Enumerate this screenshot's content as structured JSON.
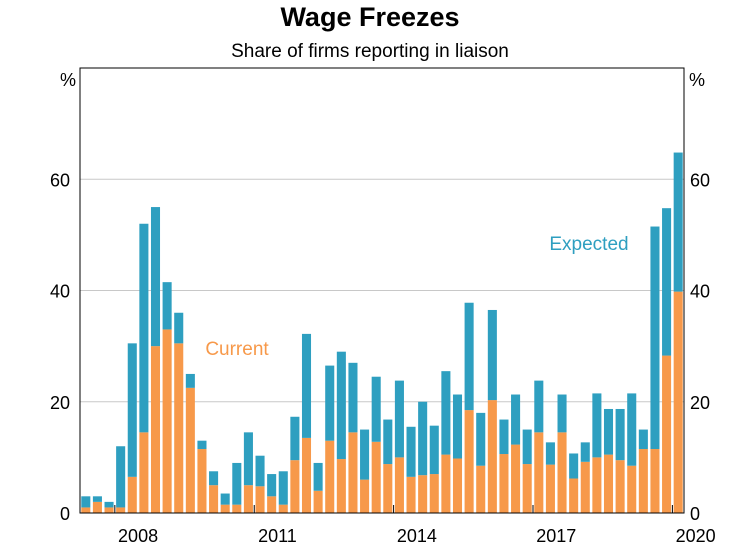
{
  "chart_data": {
    "type": "bar",
    "stacked": true,
    "title": "Wage Freezes",
    "subtitle": "Share of firms reporting in liaison",
    "y_unit_left": "%",
    "y_unit_right": "%",
    "ylim": [
      0,
      80
    ],
    "yticks": [
      "0",
      "20",
      "40",
      "60"
    ],
    "xticks": [
      "2008",
      "2011",
      "2014",
      "2017",
      "2020"
    ],
    "grid": true,
    "x_start": "2007 Q2",
    "frequency": "quarterly",
    "series": [
      {
        "name": "Current",
        "color": "#F7994A",
        "label_text_color": "#F7994A",
        "values": [
          1,
          2,
          1,
          1,
          6.5,
          14.5,
          30,
          33,
          30.5,
          22.5,
          11.5,
          5,
          1.5,
          1.5,
          5,
          4.8,
          3,
          1.5,
          9.5,
          13.5,
          4,
          13,
          9.7,
          14.5,
          6,
          12.8,
          8.8,
          10,
          6.5,
          6.8,
          7,
          10.5,
          9.8,
          18.5,
          8.5,
          20.3,
          10.6,
          12.3,
          8.8,
          14.5,
          8.7,
          14.5,
          6.2,
          9.2,
          10,
          10.5,
          9.5,
          8.5,
          11.5,
          11.5,
          28.3,
          39.8
        ]
      },
      {
        "name": "Expected",
        "color": "#2E9FC0",
        "label_text_color": "#2E9FC0",
        "values": [
          2,
          1,
          1,
          11,
          24,
          37.5,
          25,
          8.5,
          5.5,
          2.5,
          1.5,
          2.5,
          2,
          7.5,
          9.5,
          5.5,
          4,
          6,
          7.8,
          18.7,
          5,
          13.5,
          19.3,
          12.5,
          9,
          11.7,
          8,
          13.8,
          9,
          13.2,
          8.7,
          15,
          11.5,
          19.3,
          9.5,
          16.2,
          6.2,
          9,
          6.2,
          9.3,
          4,
          6.8,
          4.5,
          3.5,
          11.5,
          8.2,
          9.2,
          13,
          3.5,
          40,
          26.5,
          25
        ]
      }
    ]
  }
}
